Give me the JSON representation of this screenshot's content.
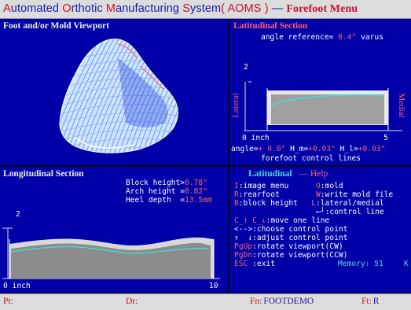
{
  "title": {
    "words": [
      {
        "initial": "A",
        "rest": "utomated"
      },
      {
        "initial": "O",
        "rest": "rthotic"
      },
      {
        "initial": "M",
        "rest": "anufacturing"
      },
      {
        "initial": "S",
        "rest": "ystem"
      }
    ],
    "acronym": "( AOMS )",
    "dash": " —",
    "menu": "Forefoot Menu"
  },
  "viewport": {
    "title": "Foot and/or Mold Viewport"
  },
  "latitudinal": {
    "title": "Latitudinal Section",
    "angle_ref_label": "angle reference= ",
    "angle_ref_value": "0.4°",
    "angle_ref_suffix": " varus",
    "y_tick": "2",
    "side_left": "Lateral",
    "side_right": "Medial",
    "x_start": "0 inch",
    "x_end": "5",
    "angle_label": "angle=",
    "angle_value": "+ 0.0°",
    "hm_label": " H_m=",
    "hm_value": "+0.03\"",
    "hl_label": " H_l=",
    "hl_value": "+0.03\"",
    "footer": "forefoot control lines"
  },
  "longitudinal": {
    "title": "Longitudinal Section",
    "block_label": "Block height>",
    "block_value": "0.78\"",
    "arch_label": "Arch height =",
    "arch_value": "0.82\"",
    "heel_label": "Heel depth  =",
    "heel_value": "13.5mm",
    "y_tick": "2",
    "x_start": "0 inch",
    "x_end": "10"
  },
  "help": {
    "title": "Latitudinal",
    "title_suffix": "— Help",
    "row1_key": "I",
    "row1_text": ":image menu      ",
    "row1_key2": "O",
    "row1_text2": ":mold",
    "row2_key": "R",
    "row2_text": ":rearfoot        ",
    "row2_key2": "W",
    "row2_text2": ":write mold file",
    "row3_key": "B",
    "row3_text": ":block height   ",
    "row3_key2": "L",
    "row3_text2": ":lateral/medial",
    "row4_key": "←┘",
    "row4_text": ":control line",
    "row5_key": "C_↑ C_↓",
    "row5_text": ":move one line",
    "row6_key": "<-->",
    "row6_text": ":choose control point",
    "row7_key": "↑  ↓",
    "row7_text": ":adjust control point",
    "row8_key": "PgUp",
    "row8_text": ":rotate viewport(CW)",
    "row9_key": "PgDn",
    "row9_text": ":rotate viewport(CCW)",
    "row10_key": "ESC",
    "row10_text": " :exit",
    "memory_label": "Memory: 51",
    "memory_unit": "K"
  },
  "status": {
    "pt_label": "Pt:",
    "dr_label": "Dr:",
    "fn_label": "Fn:",
    "fn_value": "FOOTDEMO",
    "ft_label": "Ft:",
    "ft_value": "R"
  }
}
